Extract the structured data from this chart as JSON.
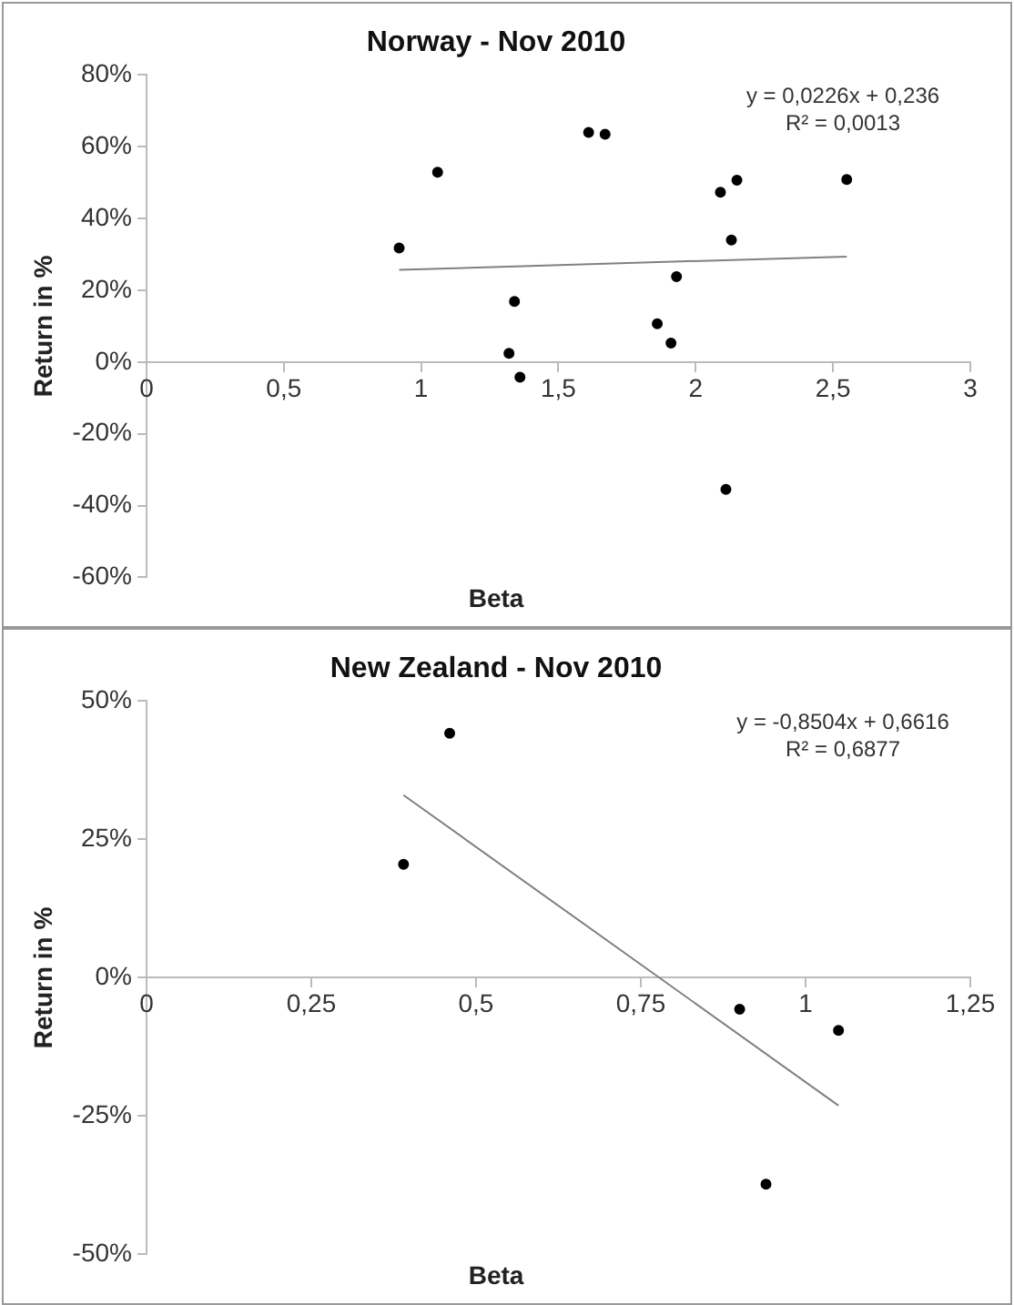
{
  "chart_data": [
    {
      "type": "scatter",
      "title": "Norway - Nov 2010",
      "xlabel": "Beta",
      "ylabel": "Return in %",
      "annotations": [
        "y = 0,0226x + 0,236",
        "R² = 0,0013"
      ],
      "grid": false,
      "legend": false,
      "xlim": [
        0,
        3
      ],
      "xticks": [
        0,
        {
          "value": 0.5,
          "label": "0,5"
        },
        1,
        {
          "value": 1.5,
          "label": "1,5"
        },
        2,
        {
          "value": 2.5,
          "label": "2,5"
        },
        3
      ],
      "ylim": [
        -60,
        80
      ],
      "yticks": [
        {
          "value": -60,
          "label": "-60%"
        },
        {
          "value": -40,
          "label": "-40%"
        },
        {
          "value": -20,
          "label": "-20%"
        },
        {
          "value": 0,
          "label": "0%"
        },
        {
          "value": 20,
          "label": "20%"
        },
        {
          "value": 40,
          "label": "40%"
        },
        {
          "value": 60,
          "label": "60%"
        },
        {
          "value": 80,
          "label": "80%"
        }
      ],
      "series": [
        {
          "type": "scatter",
          "marker": "circle",
          "color": "#000000",
          "x": [
            0.92,
            1.06,
            1.61,
            1.67,
            1.34,
            1.32,
            1.36,
            1.86,
            1.93,
            1.91,
            2.09,
            2.15,
            2.13,
            2.11,
            2.55
          ],
          "values": [
            31.8,
            52.9,
            64,
            63.5,
            16.9,
            2.4,
            -4.2,
            10.7,
            23.8,
            5.3,
            47.3,
            50.7,
            34,
            -35.5,
            50.9
          ]
        },
        {
          "type": "line",
          "color": "#808080",
          "x": [
            0.92,
            2.55
          ],
          "values": [
            25.7,
            29.4
          ]
        }
      ]
    },
    {
      "type": "scatter",
      "title": "New Zealand - Nov 2010",
      "xlabel": "Beta",
      "ylabel": "Return in %",
      "annotations": [
        "y = -0,8504x + 0,6616",
        "R² = 0,6877"
      ],
      "grid": false,
      "legend": false,
      "xlim": [
        0,
        1.25
      ],
      "xticks": [
        0,
        {
          "value": 0.25,
          "label": "0,25"
        },
        {
          "value": 0.5,
          "label": "0,5"
        },
        {
          "value": 0.75,
          "label": "0,75"
        },
        1,
        {
          "value": 1.25,
          "label": "1,25"
        }
      ],
      "ylim": [
        -50,
        50
      ],
      "yticks": [
        {
          "value": -50,
          "label": "-50%"
        },
        {
          "value": -25,
          "label": "-25%"
        },
        {
          "value": 0,
          "label": "0%"
        },
        {
          "value": 25,
          "label": "25%"
        },
        {
          "value": 50,
          "label": "50%"
        }
      ],
      "series": [
        {
          "type": "scatter",
          "marker": "circle",
          "color": "#000000",
          "x": [
            0.39,
            0.46,
            0.9,
            1.05,
            0.94
          ],
          "values": [
            20.5,
            44.2,
            -5.7,
            -9.5,
            -37.3
          ]
        },
        {
          "type": "line",
          "color": "#808080",
          "x": [
            0.39,
            1.05
          ],
          "values": [
            33.0,
            -23.1
          ]
        }
      ]
    }
  ]
}
